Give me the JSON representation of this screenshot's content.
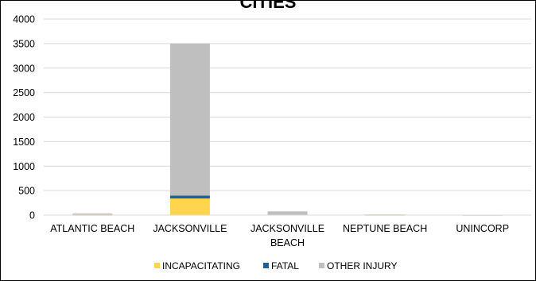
{
  "chart_data": {
    "type": "bar",
    "stacked": true,
    "title": "CITIES",
    "categories": [
      [
        "ATLANTIC BEACH"
      ],
      [
        "JACKSONVILLE"
      ],
      [
        "JACKSONVILLE",
        "BEACH"
      ],
      [
        "NEPTUNE BEACH"
      ],
      [
        "UNINCORP"
      ]
    ],
    "series": [
      {
        "name": "INCAPACITATING",
        "color": "#FFD54F",
        "values": [
          2,
          340,
          5,
          1,
          0
        ]
      },
      {
        "name": "FATAL",
        "color": "#1F5F9F",
        "values": [
          0,
          60,
          1,
          0,
          0
        ]
      },
      {
        "name": "OTHER INJURY",
        "color": "#BFBFBF",
        "values": [
          30,
          3100,
          70,
          12,
          1
        ]
      }
    ],
    "ylim": [
      0,
      4000
    ],
    "yticks": [
      0,
      500,
      1000,
      1500,
      2000,
      2500,
      3000,
      3500,
      4000
    ],
    "grid": true,
    "legend": "bottom"
  }
}
